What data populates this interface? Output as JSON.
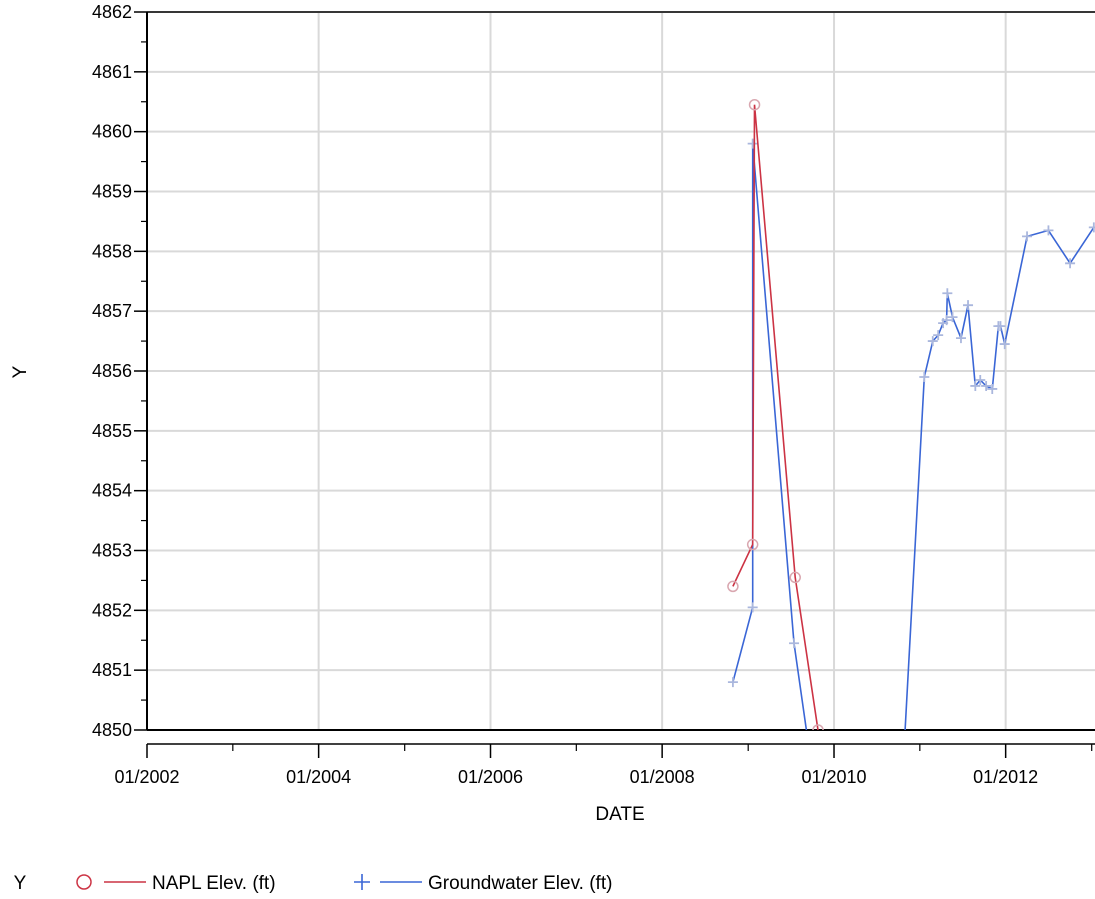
{
  "chart_data": {
    "type": "line",
    "xlabel": "DATE",
    "ylabel": "Y",
    "xlim": [
      "2002-01-01",
      "2013-01-15"
    ],
    "ylim": [
      4850,
      4862
    ],
    "x_ticks": [
      {
        "date": "2002-01-01",
        "label": "01/2002"
      },
      {
        "date": "2004-01-01",
        "label": "01/2004"
      },
      {
        "date": "2006-01-01",
        "label": "01/2006"
      },
      {
        "date": "2008-01-01",
        "label": "01/2008"
      },
      {
        "date": "2010-01-01",
        "label": "01/2010"
      },
      {
        "date": "2012-01-01",
        "label": "01/2012"
      }
    ],
    "x_minor_ticks": [
      "2003-01-01",
      "2005-01-01",
      "2007-01-01",
      "2009-01-01",
      "2011-01-01",
      "2013-01-01"
    ],
    "y_ticks": [
      4850,
      4851,
      4852,
      4853,
      4854,
      4855,
      4856,
      4857,
      4858,
      4859,
      4860,
      4861,
      4862
    ],
    "grid": true,
    "legend": {
      "title": "Y",
      "placement": "bottom-left"
    },
    "series": [
      {
        "name": "NAPL Elev. (ft)",
        "color": "#cc3344",
        "marker": "circle",
        "marker_color": "#d9a7b0",
        "x": [
          "2008-10-28",
          "2009-01-20",
          "2009-01-28",
          "2009-07-20",
          "2009-10-25"
        ],
        "y": [
          4852.4,
          4853.1,
          4860.45,
          4852.55,
          4850.0
        ]
      },
      {
        "name": "Groundwater Elev. (ft)",
        "color": "#3a66d6",
        "marker": "plus",
        "marker_color": "#aab7dd",
        "x": [
          "2008-10-28",
          "2009-01-20",
          "2009-01-20",
          "2009-07-15",
          "2009-09-20",
          "2010-10-25",
          "2011-01-20",
          "2011-02-25",
          "2011-03-20",
          "2011-04-10",
          "2011-04-25",
          "2011-04-28",
          "2011-05-20",
          "2011-06-25",
          "2011-07-25",
          "2011-08-25",
          "2011-09-15",
          "2011-10-10",
          "2011-11-05",
          "2011-12-01",
          "2011-12-10",
          "2011-12-28",
          "2012-04-01",
          "2012-07-01",
          "2012-10-01",
          "2013-01-10"
        ],
        "y": [
          4850.8,
          4852.05,
          4859.8,
          4851.45,
          4849.6,
          4849.6,
          4855.9,
          4856.5,
          4856.6,
          4856.8,
          4856.85,
          4857.3,
          4856.9,
          4856.55,
          4857.1,
          4855.75,
          4855.85,
          4855.75,
          4855.7,
          4856.75,
          4856.75,
          4856.45,
          4858.25,
          4858.35,
          4857.8,
          4858.4
        ]
      }
    ]
  }
}
